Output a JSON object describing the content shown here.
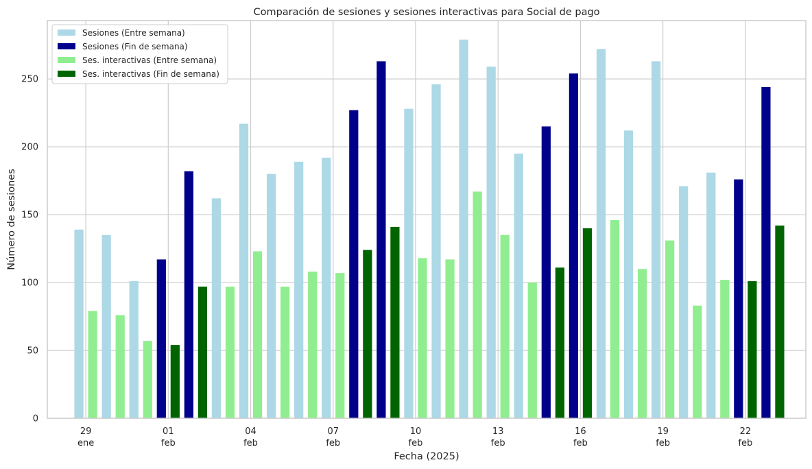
{
  "chart_data": {
    "type": "bar",
    "title": "Comparación de sesiones y sesiones interactivas para Social de pago",
    "xlabel": "Fecha (2025)",
    "ylabel": "Número de sesiones",
    "ylim": [
      0,
      293
    ],
    "yticks": [
      0,
      50,
      100,
      150,
      200,
      250
    ],
    "grid": true,
    "legend_position": "top-left",
    "x_range_days": [
      -1.4,
      26.2
    ],
    "xticks": [
      {
        "day": 0,
        "line1": "29",
        "line2": "ene"
      },
      {
        "day": 3,
        "line1": "01",
        "line2": "feb"
      },
      {
        "day": 6,
        "line1": "04",
        "line2": "feb"
      },
      {
        "day": 9,
        "line1": "07",
        "line2": "feb"
      },
      {
        "day": 12,
        "line1": "10",
        "line2": "feb"
      },
      {
        "day": 15,
        "line1": "13",
        "line2": "feb"
      },
      {
        "day": 18,
        "line1": "16",
        "line2": "feb"
      },
      {
        "day": 21,
        "line1": "19",
        "line2": "feb"
      },
      {
        "day": 24,
        "line1": "22",
        "line2": "feb"
      }
    ],
    "dates": [
      "2025-01-29",
      "2025-01-30",
      "2025-01-31",
      "2025-02-01",
      "2025-02-02",
      "2025-02-03",
      "2025-02-04",
      "2025-02-05",
      "2025-02-06",
      "2025-02-07",
      "2025-02-08",
      "2025-02-09",
      "2025-02-10",
      "2025-02-11",
      "2025-02-12",
      "2025-02-13",
      "2025-02-14",
      "2025-02-15",
      "2025-02-16",
      "2025-02-17",
      "2025-02-18",
      "2025-02-19",
      "2025-02-20",
      "2025-02-21",
      "2025-02-22",
      "2025-02-23"
    ],
    "weekend": [
      false,
      false,
      false,
      true,
      true,
      false,
      false,
      false,
      false,
      false,
      true,
      true,
      false,
      false,
      false,
      false,
      false,
      true,
      true,
      false,
      false,
      false,
      false,
      false,
      true,
      true
    ],
    "sessions": [
      139,
      135,
      101,
      117,
      182,
      162,
      217,
      180,
      189,
      192,
      227,
      263,
      228,
      246,
      279,
      259,
      195,
      215,
      254,
      272,
      212,
      263,
      171,
      181,
      176,
      244
    ],
    "interactive": [
      79,
      76,
      57,
      54,
      97,
      97,
      123,
      97,
      108,
      107,
      124,
      141,
      118,
      117,
      167,
      135,
      100,
      111,
      140,
      146,
      110,
      131,
      83,
      102,
      101,
      142
    ],
    "series": [
      {
        "name": "Sesiones (Entre semana)",
        "color": "#add8e6"
      },
      {
        "name": "Sesiones (Fin de semana)",
        "color": "#00008b"
      },
      {
        "name": "Ses. interactivas (Entre semana)",
        "color": "#90ee90"
      },
      {
        "name": "Ses. interactivas (Fin de semana)",
        "color": "#006400"
      }
    ]
  }
}
